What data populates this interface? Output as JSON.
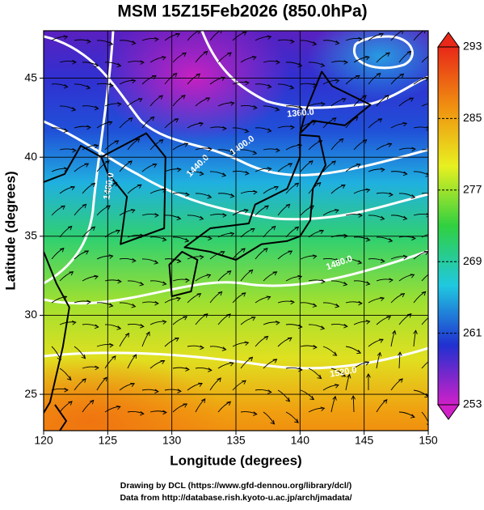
{
  "chart_data": {
    "type": "contour",
    "title": "MSM 15Z15Feb2026 (850.0hPa)",
    "x_label": "Longitude (degrees)",
    "y_label": "Latitude  (degrees)",
    "xlim": [
      120,
      150
    ],
    "ylim": [
      22.7,
      48
    ],
    "xticks": [
      120,
      125,
      130,
      135,
      140,
      145,
      150
    ],
    "yticks": [
      25,
      30,
      35,
      40,
      45
    ],
    "grid": true,
    "colorbar": {
      "lim": [
        253,
        293
      ],
      "ticks": [
        253,
        261,
        269,
        277,
        285,
        293
      ],
      "colors": [
        "#d020c8",
        "#2030d0",
        "#20c8e0",
        "#30d040",
        "#e8f020",
        "#f09010",
        "#e82818"
      ]
    },
    "contour_labels": [
      {
        "value": 1360,
        "label": "1360.0"
      },
      {
        "value": 1400,
        "label": "1400.0"
      },
      {
        "value": 1440,
        "label": "1440.0"
      },
      {
        "value": 1480,
        "label": "1480.0"
      },
      {
        "value": 1480,
        "label": "1480.0"
      },
      {
        "value": 1520,
        "label": "1520.0"
      }
    ],
    "credits": [
      "Drawing by DCL (https://www.gfd-dennou.org/library/dcl/)",
      "Data from http://database.rish.kyoto-u.ac.jp/arch/jmadata/"
    ]
  }
}
